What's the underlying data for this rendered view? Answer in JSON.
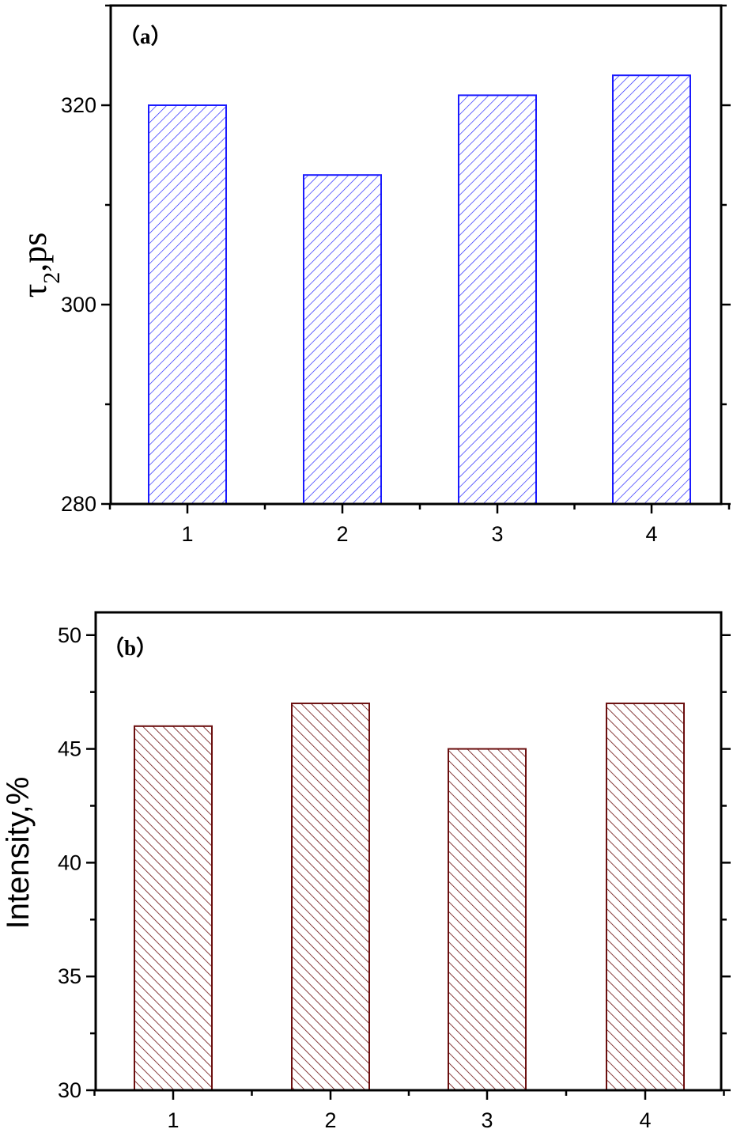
{
  "chart_data": [
    {
      "type": "bar",
      "panel_label": "（a）",
      "ylabel": "τ2,ps",
      "xlabel": "",
      "categories": [
        "1",
        "2",
        "3",
        "4"
      ],
      "values": [
        320,
        313,
        321,
        323
      ],
      "ylim": [
        280,
        330
      ],
      "yticks": [
        280,
        300,
        320
      ],
      "bar_color": "#1a1aff",
      "hatch": "forward-diagonal",
      "grid": false
    },
    {
      "type": "bar",
      "panel_label": "（b）",
      "ylabel": "Intensity,%",
      "xlabel": "",
      "categories": [
        "1",
        "2",
        "3",
        "4"
      ],
      "values": [
        46,
        47,
        45,
        47
      ],
      "ylim": [
        30,
        51
      ],
      "yticks": [
        30,
        35,
        40,
        45,
        50
      ],
      "bar_color": "#6b0f0f",
      "hatch": "backward-diagonal",
      "grid": false
    }
  ]
}
